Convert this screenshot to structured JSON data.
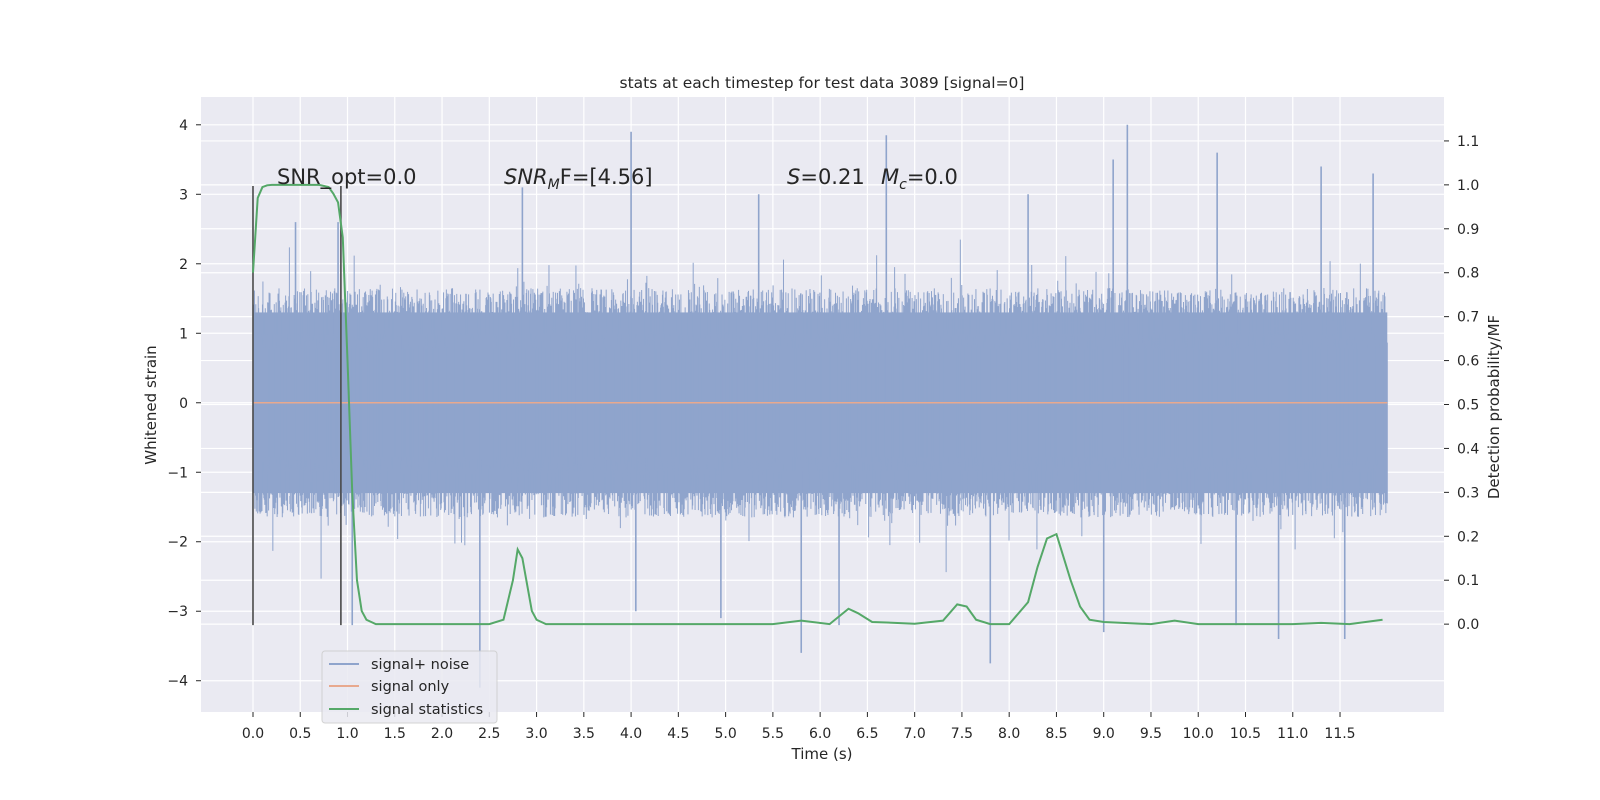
{
  "chart_data": {
    "type": "line",
    "title": "stats at each timestep for test data 3089 [signal=0]",
    "xlabel": "Time (s)",
    "ylabel": "Whitened strain",
    "ylabel_right": "Detection probability/MF",
    "xlim": [
      -0.55,
      12.6
    ],
    "ylim": [
      -4.45,
      4.4
    ],
    "ylim_right": [
      -0.2,
      1.2
    ],
    "x_ticks": [
      "0.0",
      "0.5",
      "1.0",
      "1.5",
      "2.0",
      "2.5",
      "3.0",
      "3.5",
      "4.0",
      "4.5",
      "5.0",
      "5.5",
      "6.0",
      "6.5",
      "7.0",
      "7.5",
      "8.0",
      "8.5",
      "9.0",
      "9.5",
      "10.0",
      "10.5",
      "11.0",
      "11.5"
    ],
    "y_ticks": [
      "4",
      "3",
      "2",
      "1",
      "0",
      "−1",
      "−2",
      "−3",
      "−4"
    ],
    "y_ticks_right": [
      "1.1",
      "1.0",
      "0.9",
      "0.8",
      "0.7",
      "0.6",
      "0.5",
      "0.4",
      "0.3",
      "0.2",
      "0.1",
      "0.0"
    ],
    "annotations": {
      "snr_opt": "SNR_opt=0.0",
      "snr_mf_sym": "SNR",
      "snr_mf_sub": "M",
      "snr_mf_rest": "F=[4.56]",
      "s_sym": "S",
      "s_val": "=0.21",
      "mc_sym": "M",
      "mc_sub": "c",
      "mc_val": "=0.0"
    },
    "vlines_x": [
      0.0,
      0.93
    ],
    "vlines_y": [
      -3.2,
      3.12
    ],
    "noise": {
      "name": "signal+ noise",
      "color": "#8fa4cc",
      "x_range": [
        0.0,
        12.0
      ],
      "typical_abs": 1.3,
      "peak_points": [
        {
          "x": 0.45,
          "y": 2.6
        },
        {
          "x": 0.9,
          "y": 2.6
        },
        {
          "x": 1.05,
          "y": -3.2
        },
        {
          "x": 2.4,
          "y": -4.1
        },
        {
          "x": 2.85,
          "y": 3.1
        },
        {
          "x": 4.0,
          "y": 3.9
        },
        {
          "x": 4.05,
          "y": -3.0
        },
        {
          "x": 4.95,
          "y": -3.1
        },
        {
          "x": 5.35,
          "y": 3.0
        },
        {
          "x": 5.8,
          "y": -3.6
        },
        {
          "x": 6.7,
          "y": 3.85
        },
        {
          "x": 6.2,
          "y": -3.2
        },
        {
          "x": 7.8,
          "y": -3.75
        },
        {
          "x": 8.2,
          "y": 3.0
        },
        {
          "x": 9.0,
          "y": -3.3
        },
        {
          "x": 9.1,
          "y": 3.5
        },
        {
          "x": 9.25,
          "y": 4.0
        },
        {
          "x": 10.2,
          "y": 3.6
        },
        {
          "x": 10.4,
          "y": -3.2
        },
        {
          "x": 10.85,
          "y": -3.4
        },
        {
          "x": 11.3,
          "y": 3.4
        },
        {
          "x": 11.55,
          "y": -3.4
        },
        {
          "x": 11.85,
          "y": 3.3
        }
      ]
    },
    "signal": {
      "name": "signal only",
      "color": "#e8a98e",
      "x": [
        0.0,
        12.0
      ],
      "y": [
        0.0,
        0.0
      ]
    },
    "statistics": {
      "name": "signal statistics",
      "color": "#55a868",
      "x": [
        0.0,
        0.05,
        0.1,
        0.15,
        0.2,
        0.3,
        0.5,
        0.7,
        0.8,
        0.85,
        0.9,
        0.95,
        1.0,
        1.05,
        1.1,
        1.15,
        1.2,
        1.3,
        1.5,
        2.0,
        2.5,
        2.65,
        2.75,
        2.8,
        2.85,
        2.9,
        2.95,
        3.0,
        3.1,
        3.3,
        4.0,
        5.0,
        5.5,
        5.8,
        6.1,
        6.3,
        6.4,
        6.55,
        7.0,
        7.3,
        7.45,
        7.55,
        7.65,
        7.8,
        8.0,
        8.2,
        8.3,
        8.4,
        8.5,
        8.55,
        8.65,
        8.75,
        8.85,
        9.0,
        9.5,
        9.75,
        10.0,
        10.5,
        11.0,
        11.3,
        11.6,
        11.95
      ],
      "y": [
        0.8,
        0.97,
        0.995,
        0.999,
        1.0,
        1.0,
        1.0,
        1.0,
        0.995,
        0.98,
        0.96,
        0.88,
        0.6,
        0.3,
        0.1,
        0.03,
        0.01,
        0.0,
        0.0,
        0.0,
        0.0,
        0.01,
        0.1,
        0.17,
        0.15,
        0.09,
        0.03,
        0.01,
        0.0,
        0.0,
        0.0,
        0.0,
        0.0,
        0.008,
        0.0,
        0.035,
        0.025,
        0.005,
        0.001,
        0.008,
        0.045,
        0.04,
        0.01,
        0.0,
        0.0,
        0.05,
        0.13,
        0.195,
        0.205,
        0.17,
        0.1,
        0.04,
        0.01,
        0.005,
        0.0,
        0.008,
        0.0,
        0.0,
        0.0,
        0.003,
        0.0,
        0.01
      ]
    },
    "legend": {
      "position": "lower-left",
      "entries": [
        "signal+ noise",
        "signal only",
        "signal statistics"
      ]
    },
    "grid": true,
    "background": "#eaeaf2"
  }
}
